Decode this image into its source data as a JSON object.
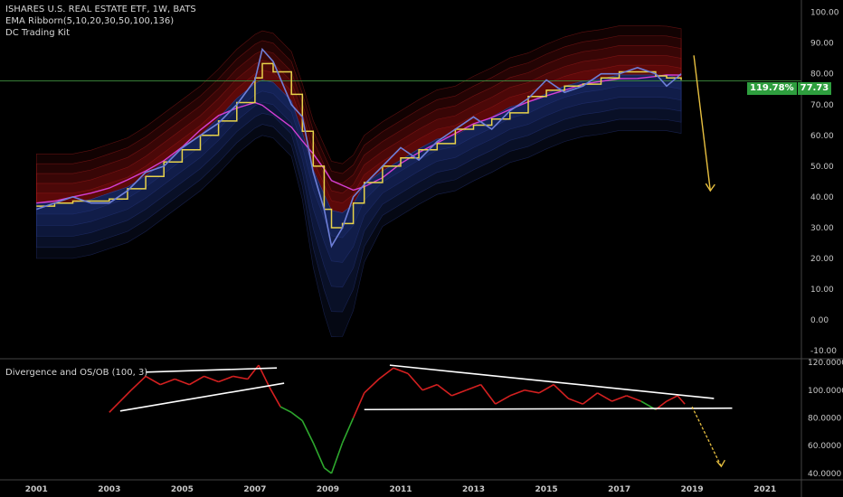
{
  "main_legend": {
    "title": "ISHARES U.S. REAL ESTATE ETF, 1W, BATS",
    "line2": "EMA Ribborn(5,10,20,30,50,100,136)",
    "line3": "DC Trading Kit"
  },
  "osc_legend": {
    "title": "Divergence and OS/OB (100, 3)"
  },
  "price_tag": {
    "percent": "119.78%",
    "value": "77.73"
  },
  "colors": {
    "background": "#000000",
    "price": "#6e7fd8",
    "donchian": "#e8d34a",
    "ema_long": "#d43fd4",
    "ribbon_upper": "#8a1010",
    "ribbon_lower": "#1a2a6a",
    "osc_up": "#d42020",
    "osc_down": "#2ea82e",
    "trendline": "#ffffff",
    "arrow": "#e8c040",
    "hline": "#3f8f3f"
  },
  "chart_data": [
    {
      "type": "line",
      "title": "ISHARES U.S. REAL ESTATE ETF, 1W, BATS",
      "xlim": [
        2000.0,
        2022.0
      ],
      "ylim": [
        -12,
        104
      ],
      "y_ticks": [
        "100.00",
        "90.00",
        "80.00",
        "70.00",
        "60.00",
        "50.00",
        "40.00",
        "30.00",
        "20.00",
        "10.00",
        "0.00",
        "-10.00"
      ],
      "y_tick_values": [
        100,
        90,
        80,
        70,
        60,
        50,
        40,
        30,
        20,
        10,
        0,
        -10
      ],
      "horizontal_line": 77.73,
      "series": [
        {
          "x": [
            2001.0,
            2001.5,
            2002.0,
            2002.5,
            2003.0,
            2003.5,
            2004.0,
            2004.5,
            2005.0,
            2005.5,
            2006.0,
            2006.5,
            2007.0,
            2007.2,
            2007.5,
            2008.0,
            2008.3,
            2008.6,
            2008.9,
            2009.1,
            2009.4,
            2009.7,
            2010.0,
            2010.5,
            2011.0,
            2011.5,
            2012.0,
            2012.5,
            2013.0,
            2013.5,
            2014.0,
            2014.5,
            2015.0,
            2015.5,
            2016.0,
            2016.5,
            2017.0,
            2017.5,
            2018.0,
            2018.3,
            2018.7
          ],
          "y": [
            36,
            38,
            40,
            38,
            38,
            42,
            48,
            50,
            56,
            60,
            64,
            70,
            78,
            88,
            84,
            70,
            66,
            48,
            36,
            24,
            30,
            40,
            44,
            50,
            56,
            52,
            58,
            62,
            66,
            62,
            68,
            72,
            78,
            74,
            76,
            80,
            80,
            82,
            80,
            76,
            80
          ]
        }
      ],
      "arrow_to": [
        2019.5,
        42
      ]
    },
    {
      "type": "line",
      "title": "Divergence and OS/OB (100, 3)",
      "xlim": [
        2000.0,
        2022.0
      ],
      "ylim": [
        36,
        122
      ],
      "x_ticks": [
        "2001",
        "2003",
        "2005",
        "2007",
        "2009",
        "2011",
        "2013",
        "2015",
        "2017",
        "2019",
        "2021"
      ],
      "x_tick_values": [
        2001,
        2003,
        2005,
        2007,
        2009,
        2011,
        2013,
        2015,
        2017,
        2019,
        2021
      ],
      "y_ticks": [
        "120.0000",
        "100.0000",
        "80.0000",
        "60.0000",
        "40.0000"
      ],
      "y_tick_values": [
        120,
        100,
        80,
        60,
        40
      ],
      "series": [
        {
          "x": [
            2003.0,
            2003.3,
            2003.6,
            2004.0,
            2004.4,
            2004.8,
            2005.2,
            2005.6,
            2006.0,
            2006.4,
            2006.8,
            2007.1,
            2007.4,
            2007.7,
            2008.0,
            2008.3,
            2008.6,
            2008.9,
            2009.1,
            2009.4,
            2009.7,
            2010.0,
            2010.4,
            2010.8,
            2011.2,
            2011.6,
            2012.0,
            2012.4,
            2012.8,
            2013.2,
            2013.6,
            2014.0,
            2014.4,
            2014.8,
            2015.2,
            2015.6,
            2016.0,
            2016.4,
            2016.8,
            2017.2,
            2017.6,
            2018.0,
            2018.3,
            2018.6,
            2018.8
          ],
          "y": [
            84,
            92,
            100,
            110,
            104,
            108,
            104,
            110,
            106,
            110,
            108,
            118,
            102,
            88,
            84,
            78,
            62,
            44,
            40,
            62,
            80,
            98,
            108,
            116,
            112,
            100,
            104,
            96,
            100,
            104,
            90,
            96,
            100,
            98,
            104,
            94,
            90,
            98,
            92,
            96,
            92,
            86,
            92,
            96,
            90
          ]
        }
      ],
      "trendlines": [
        {
          "from": [
            2004.0,
            113
          ],
          "to": [
            2007.6,
            116
          ]
        },
        {
          "from": [
            2003.3,
            85
          ],
          "to": [
            2007.8,
            105
          ]
        },
        {
          "from": [
            2010.7,
            118
          ],
          "to": [
            2019.6,
            94
          ]
        },
        {
          "from": [
            2010.0,
            86
          ],
          "to": [
            2020.1,
            87
          ]
        }
      ],
      "arrow_to": [
        2019.8,
        45
      ]
    }
  ]
}
